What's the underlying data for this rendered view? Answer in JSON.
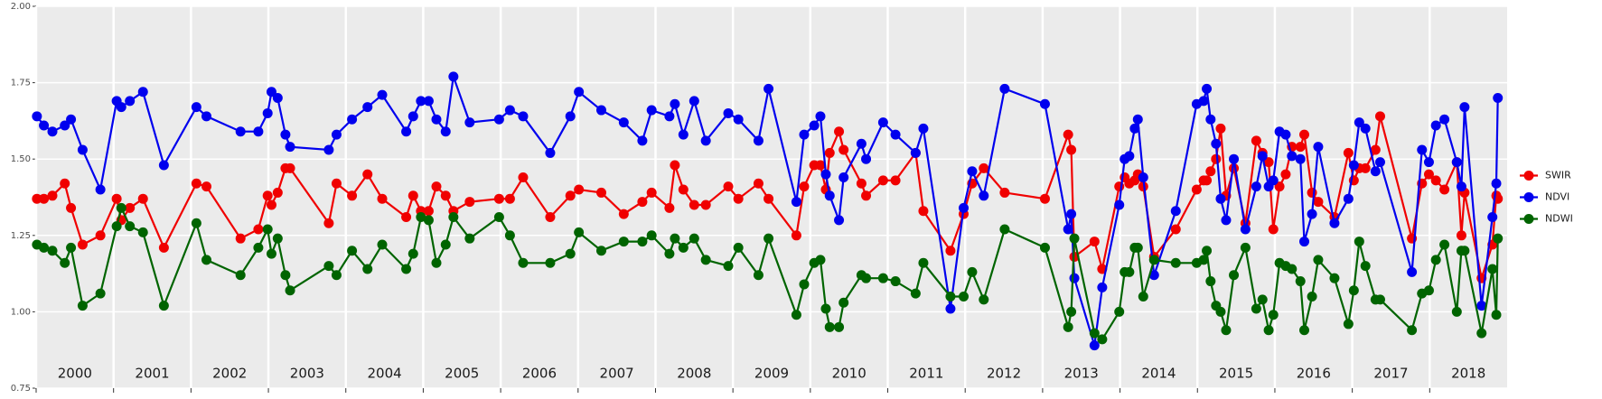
{
  "chart_data": {
    "type": "line",
    "x": [
      2000.01,
      2000.1,
      2000.21,
      2000.37,
      2000.45,
      2000.6,
      2000.83,
      2001.04,
      2001.1,
      2001.21,
      2001.38,
      2001.65,
      2002.07,
      2002.2,
      2002.64,
      2002.87,
      2002.99,
      2003.04,
      2003.12,
      2003.22,
      2003.28,
      2003.78,
      2003.88,
      2004.08,
      2004.28,
      2004.47,
      2004.78,
      2004.87,
      2004.97,
      2005.07,
      2005.17,
      2005.29,
      2005.39,
      2005.6,
      2005.98,
      2006.12,
      2006.29,
      2006.64,
      2006.9,
      2007.01,
      2007.3,
      2007.59,
      2007.83,
      2007.95,
      2008.18,
      2008.25,
      2008.36,
      2008.5,
      2008.65,
      2008.94,
      2009.07,
      2009.33,
      2009.46,
      2009.82,
      2009.92,
      2010.05,
      2010.13,
      2010.2,
      2010.25,
      2010.37,
      2010.43,
      2010.66,
      2010.72,
      2010.94,
      2011.1,
      2011.36,
      2011.46,
      2011.81,
      2011.98,
      2012.09,
      2012.24,
      2012.51,
      2013.03,
      2013.33,
      2013.37,
      2013.41,
      2013.67,
      2013.77,
      2013.99,
      2014.06,
      2014.12,
      2014.19,
      2014.23,
      2014.3,
      2014.44,
      2014.72,
      2014.99,
      2015.08,
      2015.12,
      2015.17,
      2015.24,
      2015.3,
      2015.37,
      2015.47,
      2015.62,
      2015.76,
      2015.84,
      2015.92,
      2015.98,
      2016.06,
      2016.14,
      2016.22,
      2016.33,
      2016.38,
      2016.48,
      2016.56,
      2016.77,
      2016.95,
      2017.02,
      2017.09,
      2017.17,
      2017.3,
      2017.36,
      2017.77,
      2017.9,
      2017.99,
      2018.08,
      2018.19,
      2018.35,
      2018.41,
      2018.45,
      2018.67,
      2018.81,
      2018.86,
      2018.88
    ],
    "series": [
      {
        "name": "SWIR",
        "color": "#f00000",
        "values": [
          1.37,
          1.37,
          1.38,
          1.42,
          1.34,
          1.22,
          1.25,
          1.37,
          1.3,
          1.34,
          1.37,
          1.21,
          1.42,
          1.41,
          1.24,
          1.27,
          1.38,
          1.35,
          1.39,
          1.47,
          1.47,
          1.29,
          1.42,
          1.38,
          1.45,
          1.37,
          1.31,
          1.38,
          1.33,
          1.33,
          1.41,
          1.38,
          1.33,
          1.36,
          1.37,
          1.37,
          1.44,
          1.31,
          1.38,
          1.4,
          1.39,
          1.32,
          1.36,
          1.39,
          1.34,
          1.48,
          1.4,
          1.35,
          1.35,
          1.41,
          1.37,
          1.42,
          1.37,
          1.25,
          1.41,
          1.48,
          1.48,
          1.4,
          1.52,
          1.59,
          1.53,
          1.42,
          1.38,
          1.43,
          1.43,
          1.52,
          1.33,
          1.2,
          1.32,
          1.42,
          1.47,
          1.39,
          1.37,
          1.58,
          1.53,
          1.18,
          1.23,
          1.14,
          1.41,
          1.44,
          1.42,
          1.43,
          1.45,
          1.41,
          1.18,
          1.27,
          1.4,
          1.43,
          1.43,
          1.46,
          1.5,
          1.6,
          1.38,
          1.47,
          1.29,
          1.56,
          1.52,
          1.49,
          1.27,
          1.41,
          1.45,
          1.54,
          1.54,
          1.58,
          1.39,
          1.36,
          1.31,
          1.52,
          1.43,
          1.47,
          1.47,
          1.53,
          1.64,
          1.24,
          1.42,
          1.45,
          1.43,
          1.4,
          1.49,
          1.25,
          1.39,
          1.11,
          1.22,
          1.38,
          1.37
        ]
      },
      {
        "name": "NDVI",
        "color": "#0000ee",
        "values": [
          1.64,
          1.61,
          1.59,
          1.61,
          1.63,
          1.53,
          1.4,
          1.69,
          1.67,
          1.69,
          1.72,
          1.48,
          1.67,
          1.64,
          1.59,
          1.59,
          1.65,
          1.72,
          1.7,
          1.58,
          1.54,
          1.53,
          1.58,
          1.63,
          1.67,
          1.71,
          1.59,
          1.64,
          1.69,
          1.69,
          1.63,
          1.59,
          1.77,
          1.62,
          1.63,
          1.66,
          1.64,
          1.52,
          1.64,
          1.72,
          1.66,
          1.62,
          1.56,
          1.66,
          1.64,
          1.68,
          1.58,
          1.69,
          1.56,
          1.65,
          1.63,
          1.56,
          1.73,
          1.36,
          1.58,
          1.61,
          1.64,
          1.45,
          1.38,
          1.3,
          1.44,
          1.55,
          1.5,
          1.62,
          1.58,
          1.52,
          1.6,
          1.01,
          1.34,
          1.46,
          1.38,
          1.73,
          1.68,
          1.27,
          1.32,
          1.11,
          0.89,
          1.08,
          1.35,
          1.5,
          1.51,
          1.6,
          1.63,
          1.44,
          1.12,
          1.33,
          1.68,
          1.69,
          1.73,
          1.63,
          1.55,
          1.37,
          1.3,
          1.5,
          1.27,
          1.41,
          1.51,
          1.41,
          1.43,
          1.59,
          1.58,
          1.51,
          1.5,
          1.23,
          1.32,
          1.54,
          1.29,
          1.37,
          1.48,
          1.62,
          1.6,
          1.46,
          1.49,
          1.13,
          1.53,
          1.49,
          1.61,
          1.63,
          1.49,
          1.41,
          1.67,
          1.02,
          1.31,
          1.42,
          1.7
        ]
      },
      {
        "name": "NDWI",
        "color": "#006400",
        "values": [
          1.22,
          1.21,
          1.2,
          1.16,
          1.21,
          1.02,
          1.06,
          1.28,
          1.34,
          1.28,
          1.26,
          1.02,
          1.29,
          1.17,
          1.12,
          1.21,
          1.27,
          1.19,
          1.24,
          1.12,
          1.07,
          1.15,
          1.12,
          1.2,
          1.14,
          1.22,
          1.14,
          1.19,
          1.31,
          1.3,
          1.16,
          1.22,
          1.31,
          1.24,
          1.31,
          1.25,
          1.16,
          1.16,
          1.19,
          1.26,
          1.2,
          1.23,
          1.23,
          1.25,
          1.19,
          1.24,
          1.21,
          1.24,
          1.17,
          1.15,
          1.21,
          1.12,
          1.24,
          0.99,
          1.09,
          1.16,
          1.17,
          1.01,
          0.95,
          0.95,
          1.03,
          1.12,
          1.11,
          1.11,
          1.1,
          1.06,
          1.16,
          1.05,
          1.05,
          1.13,
          1.04,
          1.27,
          1.21,
          0.95,
          1.0,
          1.24,
          0.93,
          0.91,
          1.0,
          1.13,
          1.13,
          1.21,
          1.21,
          1.05,
          1.17,
          1.16,
          1.16,
          1.17,
          1.2,
          1.1,
          1.02,
          1.0,
          0.94,
          1.12,
          1.21,
          1.01,
          1.04,
          0.94,
          0.99,
          1.16,
          1.15,
          1.14,
          1.1,
          0.94,
          1.05,
          1.17,
          1.11,
          0.96,
          1.07,
          1.23,
          1.15,
          1.04,
          1.04,
          0.94,
          1.06,
          1.07,
          1.17,
          1.22,
          1.0,
          1.2,
          1.2,
          0.93,
          1.14,
          0.99,
          1.24
        ]
      }
    ],
    "xlim": [
      2000,
      2019
    ],
    "xticks": [
      2000,
      2001,
      2002,
      2003,
      2004,
      2005,
      2006,
      2007,
      2008,
      2009,
      2010,
      2011,
      2012,
      2013,
      2014,
      2015,
      2016,
      2017,
      2018
    ],
    "ylim": [
      0.75,
      2.0
    ],
    "yticks": [
      {
        "value": 0.75,
        "label": "0.75"
      },
      {
        "value": 1.0,
        "label": "1.00"
      },
      {
        "value": 1.25,
        "label": "1.25"
      },
      {
        "value": 1.5,
        "label": "1.50"
      },
      {
        "value": 1.75,
        "label": "1.75"
      },
      {
        "value": 2.0,
        "label": "2.00"
      }
    ],
    "grid": true,
    "legend": "right"
  }
}
